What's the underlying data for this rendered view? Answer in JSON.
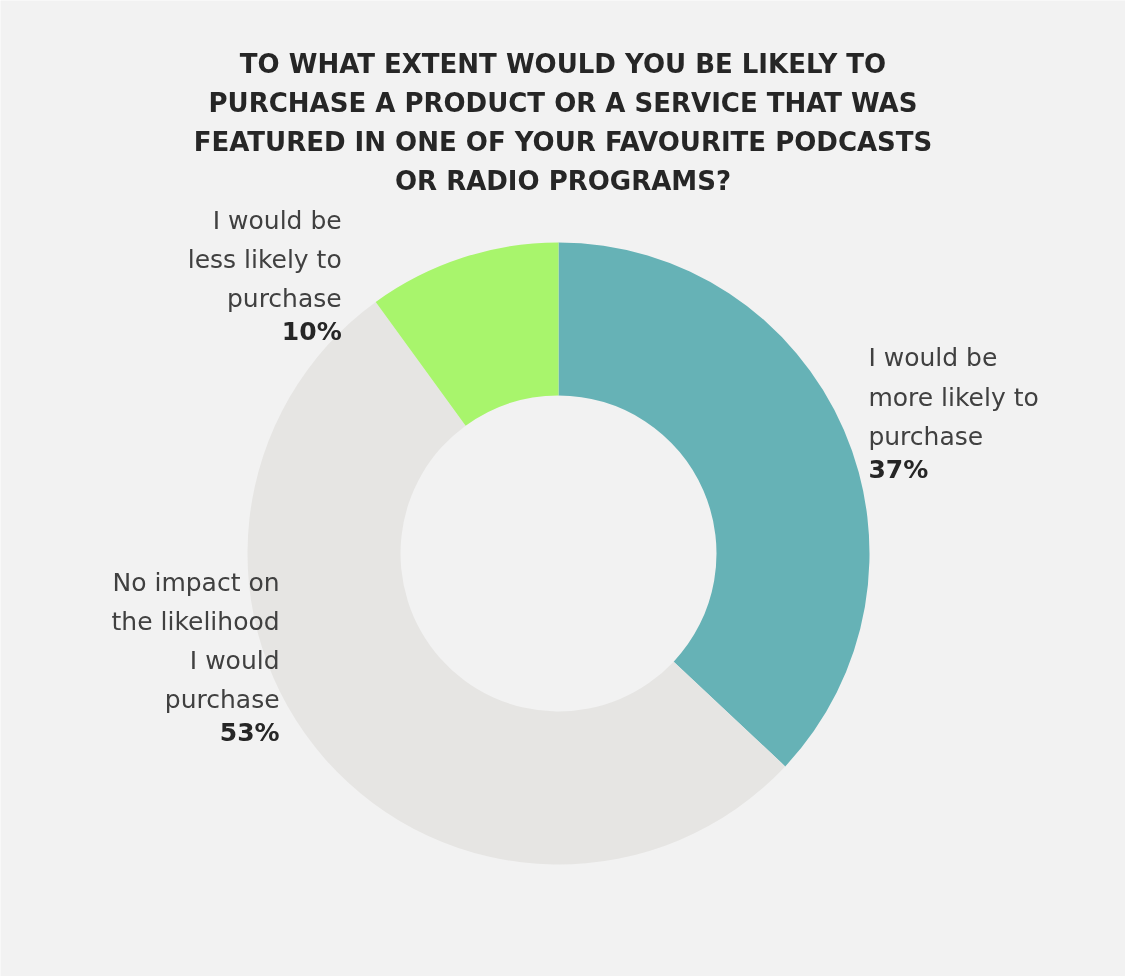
{
  "chart_data": {
    "type": "donut",
    "title": "TO WHAT EXTENT WOULD YOU BE LIKELY TO PURCHASE A PRODUCT OR A SERVICE THAT WAS FEATURED IN ONE OF YOUR FAVOURITE PODCASTS OR RADIO PROGRAMS?",
    "categories": [
      "I would be more likely to purchase",
      "No impact on the likelihood I would purchase",
      "I would be less likely to purchase"
    ],
    "values": [
      37,
      53,
      10
    ],
    "colors": [
      "#66b2b6",
      "#e6e5e3",
      "#a8f56c"
    ],
    "value_labels": [
      "37%",
      "53%",
      "10%"
    ]
  }
}
